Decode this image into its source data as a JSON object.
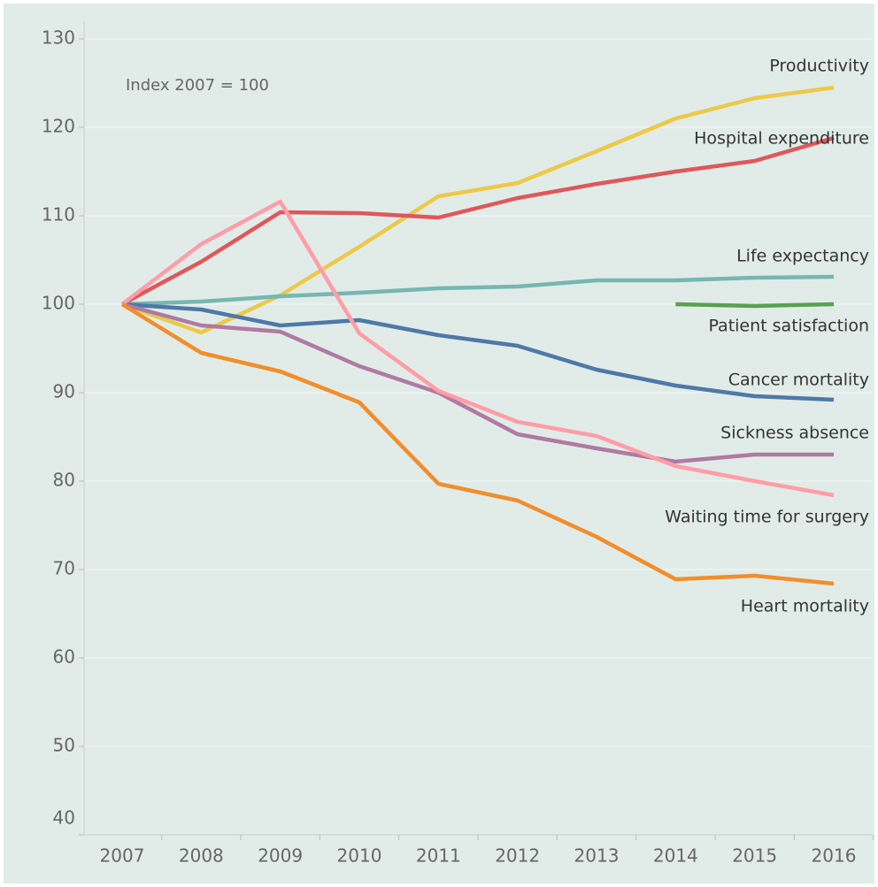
{
  "chart_data": {
    "type": "line",
    "annotation": "Index 2007 = 100",
    "x": [
      2007,
      2008,
      2009,
      2010,
      2011,
      2012,
      2013,
      2014,
      2015,
      2016
    ],
    "xlim": [
      2007,
      2016
    ],
    "ylim": [
      40,
      132
    ],
    "yticks": [
      40,
      50,
      60,
      70,
      80,
      90,
      100,
      110,
      120,
      130
    ],
    "grid": true,
    "series": [
      {
        "name": "Productivity",
        "color": "#edc948",
        "values": [
          100,
          96.8,
          101,
          106.5,
          112.2,
          113.7,
          117.3,
          121,
          123.3,
          124.5
        ]
      },
      {
        "name": "Hospital expenditure",
        "color": "#e15759",
        "values": [
          100,
          104.8,
          110.4,
          110.3,
          109.8,
          112,
          113.6,
          115,
          116.2,
          118.8
        ]
      },
      {
        "name": "Life expectancy",
        "color": "#76b7b2",
        "values": [
          100,
          100.3,
          100.9,
          101.3,
          101.8,
          102,
          102.7,
          102.7,
          103,
          103.1
        ]
      },
      {
        "name": "Patient satisfaction",
        "color": "#59a14f",
        "values": [
          null,
          null,
          null,
          null,
          null,
          null,
          null,
          100,
          99.8,
          100
        ]
      },
      {
        "name": "Cancer mortality",
        "color": "#4e79a7",
        "values": [
          100,
          99.4,
          97.6,
          98.2,
          96.5,
          95.3,
          92.6,
          90.8,
          89.6,
          89.2
        ]
      },
      {
        "name": "Sickness absence",
        "color": "#b07aa1",
        "values": [
          100,
          97.6,
          96.9,
          93,
          90,
          85.3,
          83.7,
          82.2,
          83,
          83
        ]
      },
      {
        "name": "Waiting time for surgery",
        "color": "#ff9da7",
        "values": [
          100,
          106.8,
          111.6,
          96.7,
          90.2,
          86.7,
          85.1,
          81.7,
          80,
          78.4
        ]
      },
      {
        "name": "Heart mortality",
        "color": "#f28e2b",
        "values": [
          100,
          94.5,
          92.4,
          88.9,
          79.7,
          77.8,
          73.7,
          68.9,
          69.3,
          68.4
        ]
      }
    ]
  }
}
